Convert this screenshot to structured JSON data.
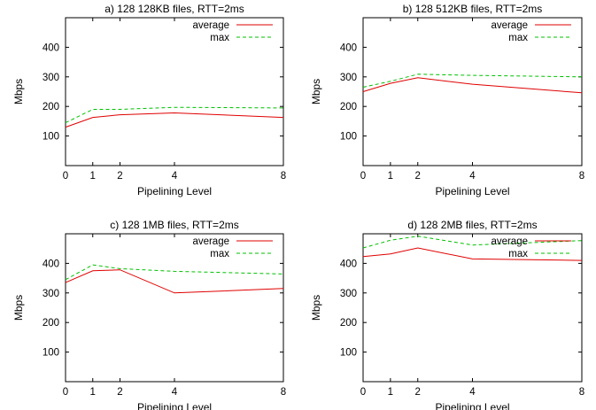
{
  "chart_data": [
    {
      "type": "line",
      "title": "a) 128 128KB files, RTT=2ms",
      "xlabel": "Pipelining Level",
      "ylabel": "Mbps",
      "xlim": [
        0,
        8
      ],
      "ylim": [
        0,
        500
      ],
      "xticks": [
        0,
        1,
        2,
        4,
        8
      ],
      "yticks": [
        100,
        200,
        300,
        400
      ],
      "x": [
        0,
        1,
        2,
        4,
        8
      ],
      "series": [
        {
          "name": "average",
          "color": "#e00000",
          "dash": "solid",
          "values": [
            130,
            163,
            172,
            178,
            163
          ]
        },
        {
          "name": "max",
          "color": "#00c000",
          "dash": "dashed",
          "values": [
            145,
            190,
            190,
            197,
            195
          ]
        }
      ],
      "legend": "top-right",
      "grid": false
    },
    {
      "type": "line",
      "title": "b) 128 512KB files, RTT=2ms",
      "xlabel": "Pipelining Level",
      "ylabel": "Mbps",
      "xlim": [
        0,
        8
      ],
      "ylim": [
        0,
        500
      ],
      "xticks": [
        0,
        1,
        2,
        4,
        8
      ],
      "yticks": [
        100,
        200,
        300,
        400
      ],
      "x": [
        0,
        1,
        2,
        4,
        8
      ],
      "series": [
        {
          "name": "average",
          "color": "#e00000",
          "dash": "solid",
          "values": [
            250,
            278,
            297,
            275,
            246
          ]
        },
        {
          "name": "max",
          "color": "#00c000",
          "dash": "dashed",
          "values": [
            265,
            285,
            309,
            305,
            300
          ]
        }
      ],
      "legend": "top-right",
      "grid": false
    },
    {
      "type": "line",
      "title": "c) 128 1MB files, RTT=2ms",
      "xlabel": "Pipelining Level",
      "ylabel": "Mbps",
      "xlim": [
        0,
        8
      ],
      "ylim": [
        0,
        500
      ],
      "xticks": [
        0,
        1,
        2,
        4,
        8
      ],
      "yticks": [
        100,
        200,
        300,
        400
      ],
      "x": [
        0,
        1,
        2,
        4,
        8
      ],
      "series": [
        {
          "name": "average",
          "color": "#e00000",
          "dash": "solid",
          "values": [
            335,
            375,
            378,
            300,
            315
          ]
        },
        {
          "name": "max",
          "color": "#00c000",
          "dash": "dashed",
          "values": [
            345,
            395,
            382,
            373,
            364
          ]
        }
      ],
      "legend": "top-right",
      "grid": false
    },
    {
      "type": "line",
      "title": "d) 128 2MB files, RTT=2ms",
      "xlabel": "Pipelining Level",
      "ylabel": "Mbps",
      "xlim": [
        0,
        8
      ],
      "ylim": [
        0,
        500
      ],
      "xticks": [
        0,
        1,
        2,
        4,
        8
      ],
      "yticks": [
        100,
        200,
        300,
        400
      ],
      "x": [
        0,
        1,
        2,
        4,
        8
      ],
      "series": [
        {
          "name": "average",
          "color": "#e00000",
          "dash": "solid",
          "values": [
            423,
            432,
            452,
            415,
            410
          ]
        },
        {
          "name": "max",
          "color": "#00c000",
          "dash": "dashed",
          "values": [
            452,
            478,
            492,
            462,
            477
          ]
        }
      ],
      "legend": "top-right",
      "grid": false
    }
  ]
}
